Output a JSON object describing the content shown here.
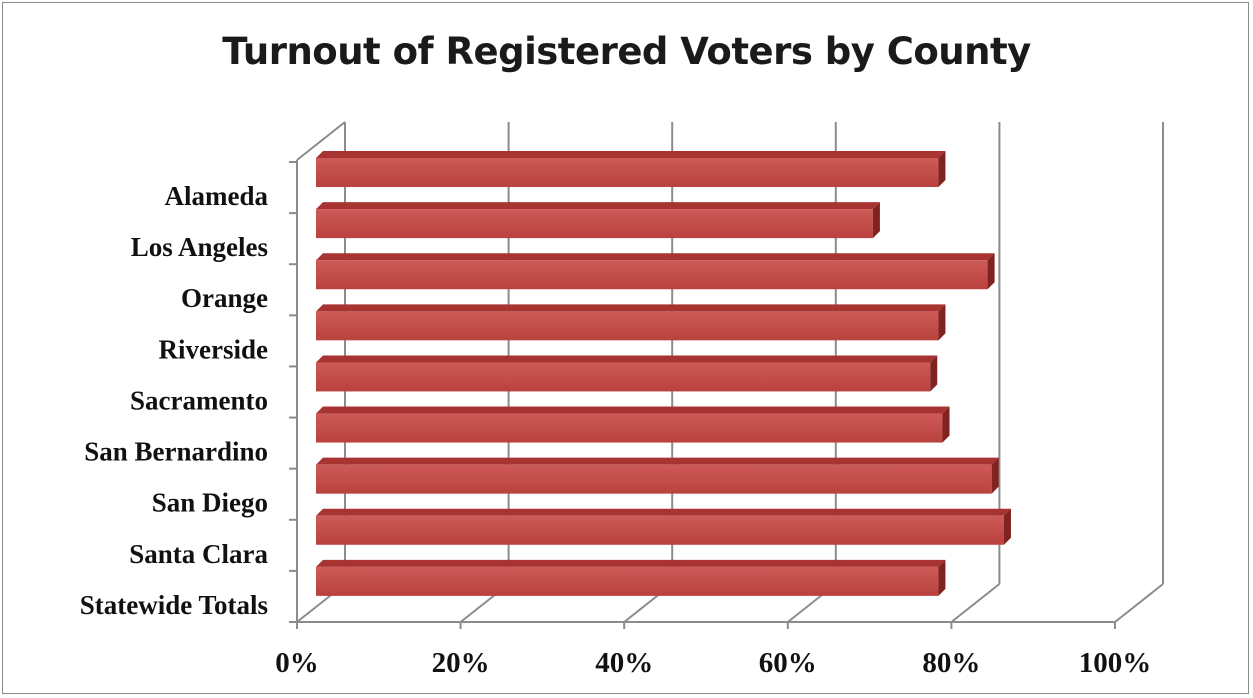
{
  "chart_data": {
    "type": "bar",
    "orientation": "horizontal",
    "style": "3d",
    "title": "Turnout of Registered Voters by County",
    "categories": [
      "Alameda",
      "Los Angeles",
      "Orange",
      "Riverside",
      "Sacramento",
      "San Bernardino",
      "San Diego",
      "Santa Clara",
      "Statewide Totals"
    ],
    "values": [
      76,
      68,
      82,
      76,
      75,
      76.5,
      82.5,
      84,
      76
    ],
    "xlim": [
      0,
      100
    ],
    "x_ticks": [
      0,
      20,
      40,
      60,
      80,
      100
    ],
    "x_tick_labels": [
      "0%",
      "20%",
      "40%",
      "60%",
      "80%",
      "100%"
    ],
    "grid": true,
    "legend": "none",
    "bar_color": "#c0504d"
  }
}
